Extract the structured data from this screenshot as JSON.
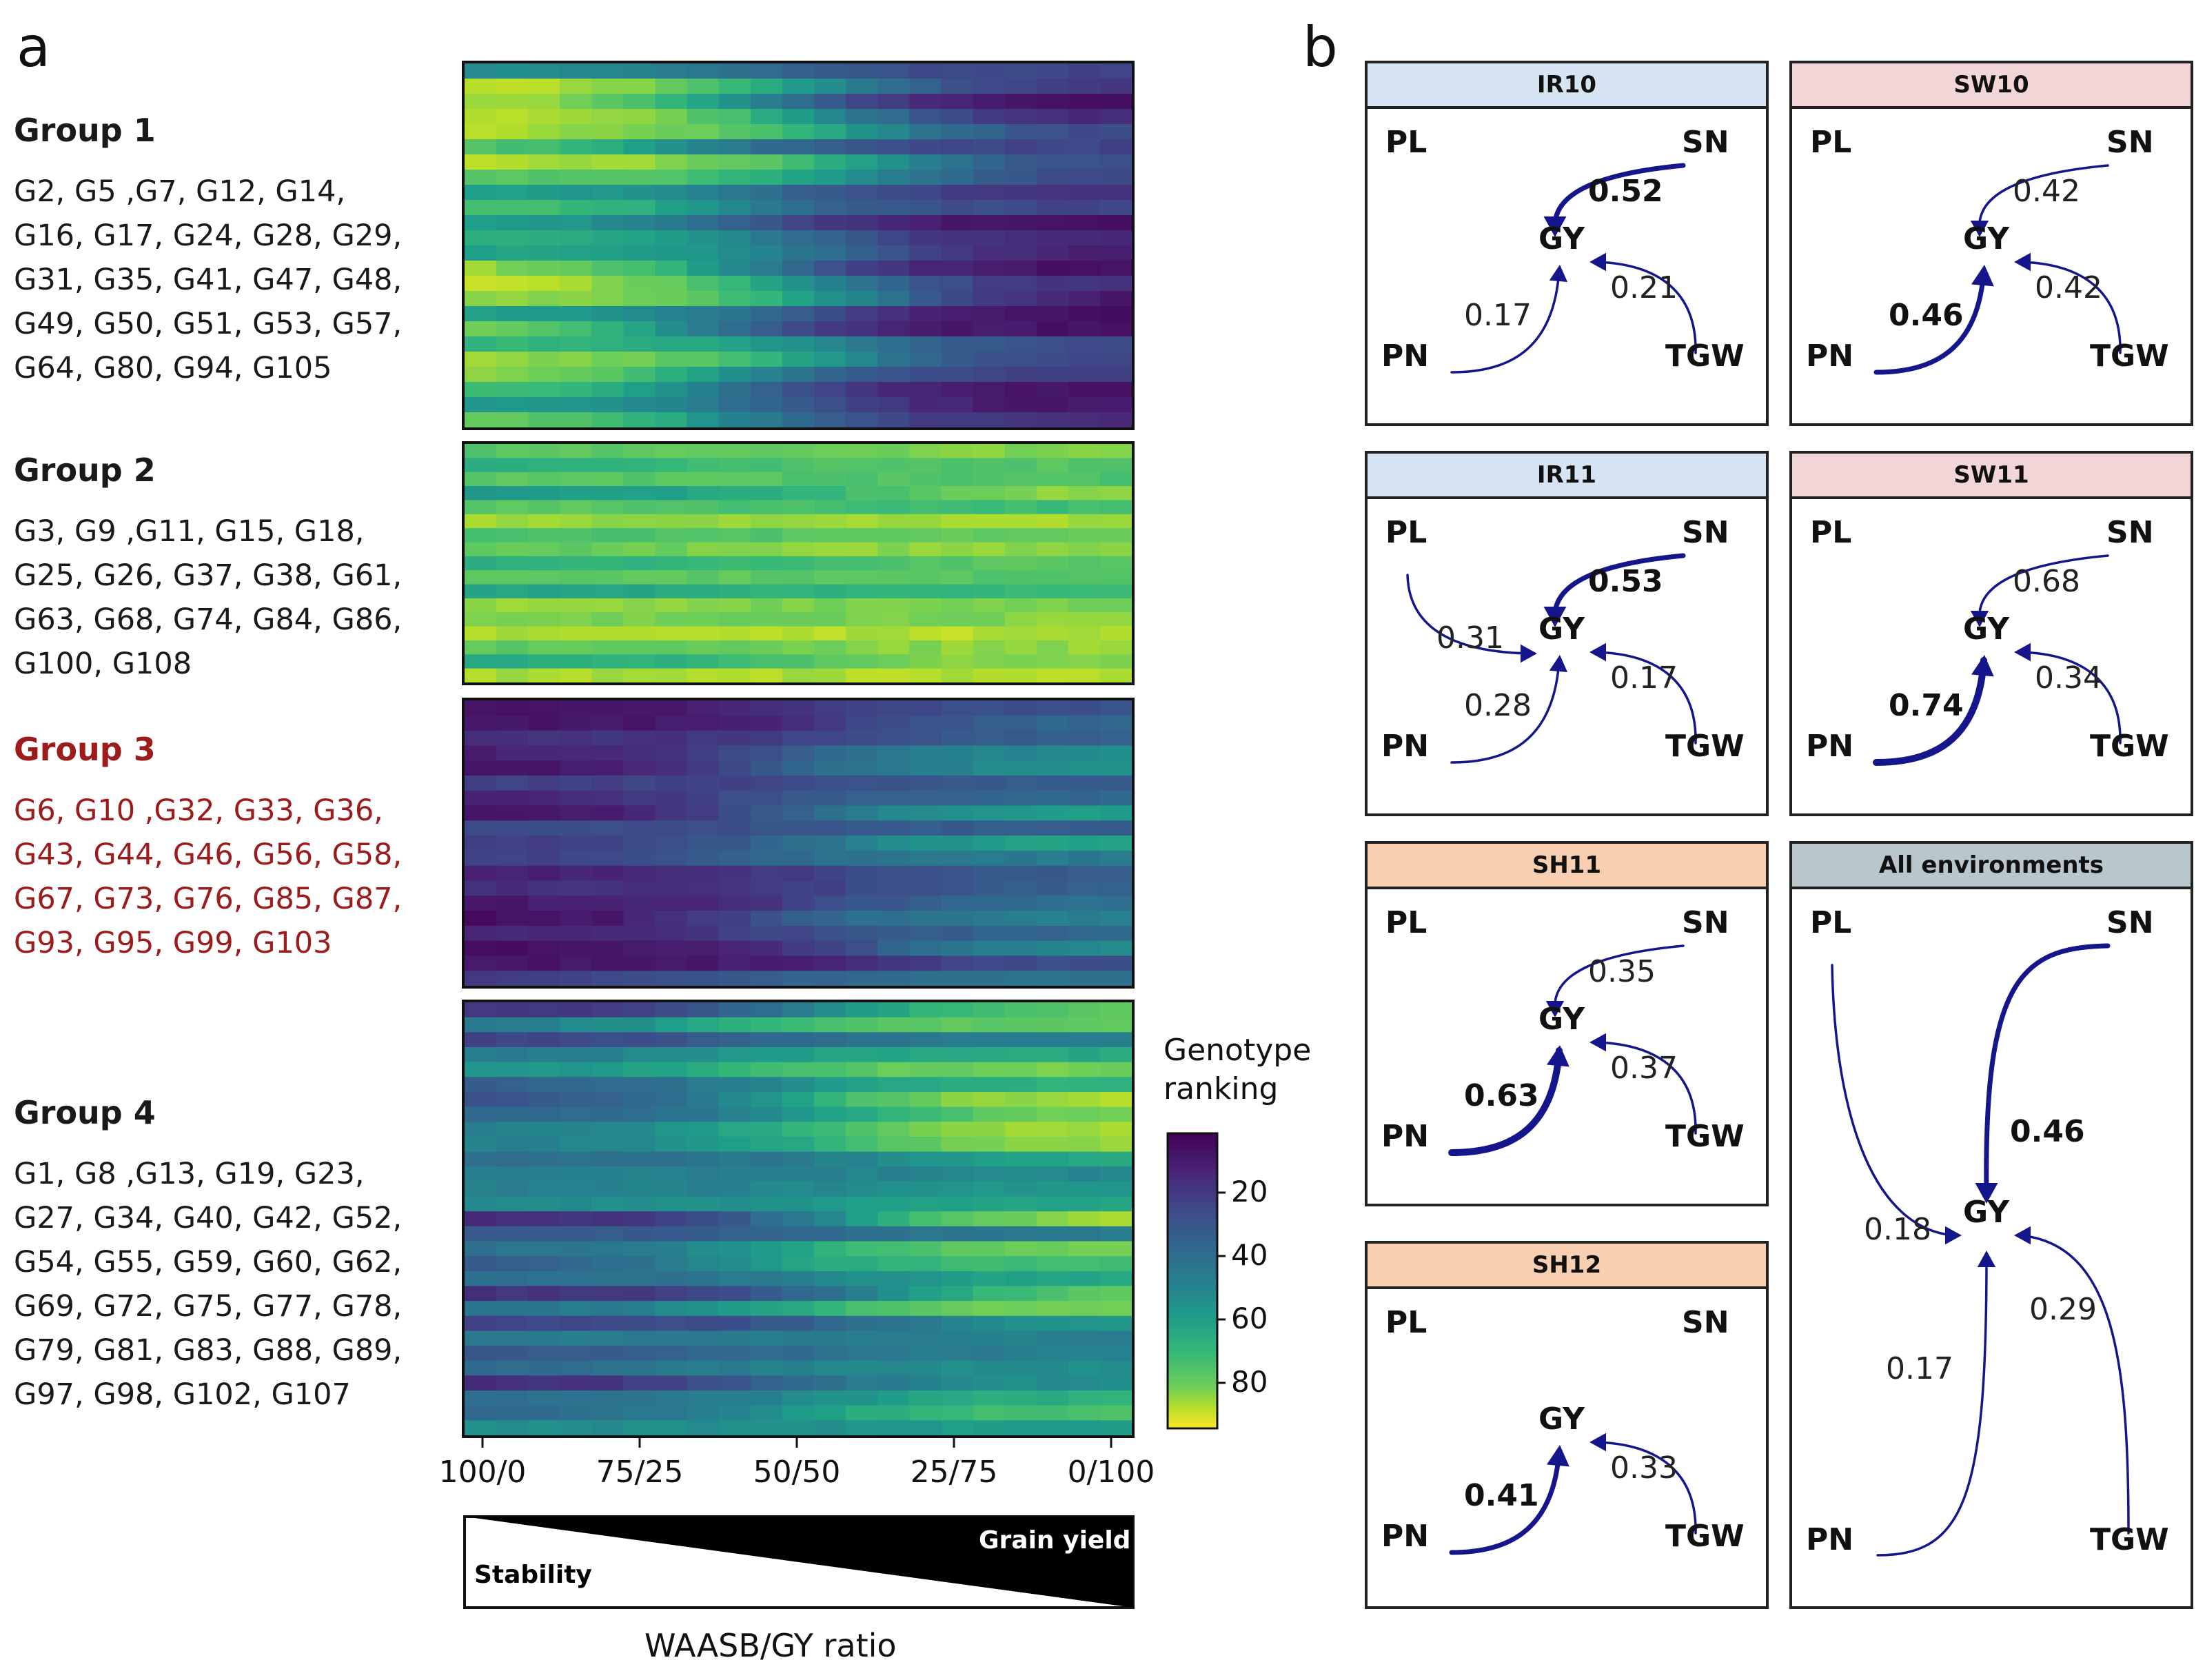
{
  "panel_a": {
    "letter": "a",
    "groups": [
      {
        "title": "Group 1",
        "members": "G2, G5 ,G7, G12, G14,\nG16, G17, G24, G28, G29,\nG31, G35, G41, G47, G48,\nG49, G50, G51, G53, G57,\nG64, G80, G94, G105",
        "highlight": false
      },
      {
        "title": "Group 2",
        "members": "G3, G9 ,G11, G15, G18,\nG25, G26, G37, G38, G61,\nG63, G68, G74, G84, G86,\nG100, G108",
        "highlight": false
      },
      {
        "title": "Group 3",
        "members": "G6, G10 ,G32, G33, G36,\nG43, G44, G46, G56, G58,\nG67, G73, G76, G85, G87,\nG93, G95, G99, G103",
        "highlight": true
      },
      {
        "title": "Group 4",
        "members": "G1, G8 ,G13, G19, G23,\nG27, G34, G40, G42, G52,\nG54, G55, G59, G60, G62,\nG69, G72, G75, G77, G78,\nG79, G81, G83, G88, G89,\nG97, G98, G102, G107",
        "highlight": false
      }
    ],
    "x_ticks": [
      "100/0",
      "75/25",
      "50/50",
      "25/75",
      "0/100"
    ],
    "colorbar": {
      "title_line1": "Genotype",
      "title_line2": "ranking",
      "ticks": [
        "20",
        "40",
        "60",
        "80"
      ]
    },
    "wedge": {
      "stability": "Stability",
      "grain_yield": "Grain yield"
    },
    "xlabel": "WAASB/GY ratio",
    "colors": {
      "low": "#440154",
      "mid": "#21918c",
      "high": "#fde725",
      "highlight_text": "#9e1b1b"
    }
  },
  "chart_data": {
    "type": "heatmap",
    "xlabel": "WAASB/GY ratio",
    "x": [
      "100/0",
      "75/25",
      "50/50",
      "25/75",
      "0/100"
    ],
    "colorbar_label": "Genotype ranking",
    "colorbar_range": [
      1,
      95
    ],
    "group_profiles": [
      {
        "group": "Group 1",
        "rows": 24,
        "rank_start_range": [
          55,
          92
        ],
        "rank_end_range": [
          3,
          25
        ]
      },
      {
        "group": "Group 2",
        "rows": 17,
        "rank_start_range": [
          55,
          90
        ],
        "rank_end_range": [
          70,
          95
        ]
      },
      {
        "group": "Group 3",
        "rows": 19,
        "rank_start_range": [
          3,
          25
        ],
        "rank_end_range": [
          25,
          65
        ]
      },
      {
        "group": "Group 4",
        "rows": 29,
        "rank_start_range": [
          10,
          55
        ],
        "rank_end_range": [
          45,
          90
        ]
      }
    ]
  },
  "panel_b": {
    "letter": "b",
    "nodes": {
      "pl": "PL",
      "sn": "SN",
      "gy": "GY",
      "pn": "PN",
      "tgw": "TGW"
    },
    "panels": [
      {
        "id": "IR10",
        "title": "IR10",
        "header_color": "#d6e3f3",
        "paths": [
          {
            "from": "SN",
            "coef": "0.52",
            "bold": true
          },
          {
            "from": "PN",
            "coef": "0.17",
            "bold": false
          },
          {
            "from": "TGW",
            "coef": "0.21",
            "bold": false
          }
        ]
      },
      {
        "id": "SW10",
        "title": "SW10",
        "header_color": "#f2d5d7",
        "paths": [
          {
            "from": "SN",
            "coef": "0.42",
            "bold": false
          },
          {
            "from": "PN",
            "coef": "0.46",
            "bold": true
          },
          {
            "from": "TGW",
            "coef": "0.42",
            "bold": false
          }
        ]
      },
      {
        "id": "IR11",
        "title": "IR11",
        "header_color": "#d6e3f3",
        "paths": [
          {
            "from": "PL",
            "coef": "0.31",
            "bold": false
          },
          {
            "from": "SN",
            "coef": "0.53",
            "bold": true
          },
          {
            "from": "PN",
            "coef": "0.28",
            "bold": false
          },
          {
            "from": "TGW",
            "coef": "0.17",
            "bold": false
          }
        ]
      },
      {
        "id": "SW11",
        "title": "SW11",
        "header_color": "#f2d5d7",
        "paths": [
          {
            "from": "SN",
            "coef": "0.68",
            "bold": false
          },
          {
            "from": "PN",
            "coef": "0.74",
            "bold": true
          },
          {
            "from": "TGW",
            "coef": "0.34",
            "bold": false
          }
        ]
      },
      {
        "id": "SH11",
        "title": "SH11",
        "header_color": "#f8cfb1",
        "paths": [
          {
            "from": "SN",
            "coef": "0.35",
            "bold": false
          },
          {
            "from": "PN",
            "coef": "0.63",
            "bold": true
          },
          {
            "from": "TGW",
            "coef": "0.37",
            "bold": false
          }
        ]
      },
      {
        "id": "ALL",
        "title": "All environments",
        "header_color": "#b9c6cc",
        "paths": [
          {
            "from": "PL",
            "coef": "0.18",
            "bold": false
          },
          {
            "from": "SN",
            "coef": "0.46",
            "bold": true
          },
          {
            "from": "PN",
            "coef": "0.17",
            "bold": false
          },
          {
            "from": "TGW",
            "coef": "0.29",
            "bold": false
          }
        ]
      },
      {
        "id": "SH12",
        "title": "SH12",
        "header_color": "#f8cfb1",
        "paths": [
          {
            "from": "PN",
            "coef": "0.41",
            "bold": true
          },
          {
            "from": "TGW",
            "coef": "0.33",
            "bold": false
          }
        ]
      }
    ],
    "arrow_color": "#16168c"
  }
}
